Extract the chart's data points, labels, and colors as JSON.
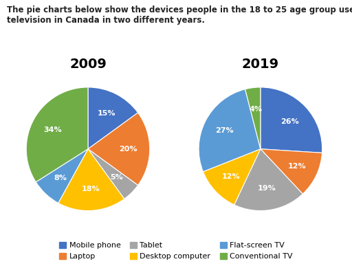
{
  "title_text": "The pie charts below show the devices people in the 18 to 25 age group use to watch\ntelevision in Canada in two different years.",
  "year2009": {
    "title": "2009",
    "values": [
      15,
      20,
      5,
      18,
      8,
      34
    ],
    "labels": [
      "15%",
      "20%",
      "5%",
      "18%",
      "8%",
      "34%"
    ],
    "startangle": 90
  },
  "year2019": {
    "title": "2019",
    "values": [
      26,
      12,
      19,
      12,
      27,
      4
    ],
    "labels": [
      "26%",
      "12%",
      "19%",
      "12%",
      "27%",
      "4%"
    ],
    "startangle": 90
  },
  "categories": [
    "Mobile phone",
    "Laptop",
    "Tablet",
    "Desktop computer",
    "Flat-screen TV",
    "Conventional TV"
  ],
  "colors": [
    "#4472C4",
    "#ED7D31",
    "#A5A5A5",
    "#FFC000",
    "#5B9BD5",
    "#70AD47"
  ],
  "background_color": "#FFFFFF",
  "title_fontsize": 8.5,
  "pie_title_fontsize": 14,
  "label_fontsize": 8,
  "legend_fontsize": 8
}
